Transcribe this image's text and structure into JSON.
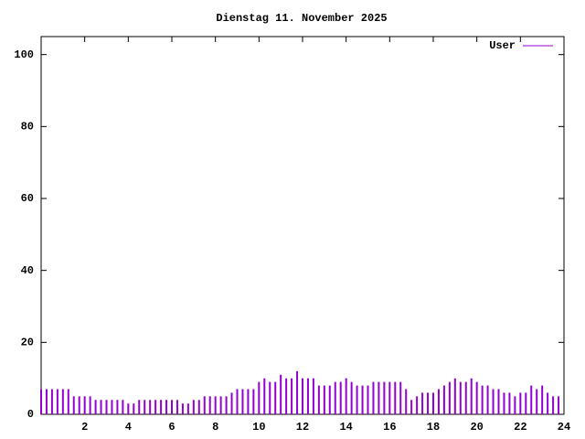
{
  "chart_data": {
    "type": "impulse",
    "title": "Dienstag 11. November 2025",
    "x": [
      0,
      0.25,
      0.5,
      0.75,
      1,
      1.25,
      1.5,
      1.75,
      2,
      2.25,
      2.5,
      2.75,
      3,
      3.25,
      3.5,
      3.75,
      4,
      4.25,
      4.5,
      4.75,
      5,
      5.25,
      5.5,
      5.75,
      6,
      6.25,
      6.5,
      6.75,
      7,
      7.25,
      7.5,
      7.75,
      8,
      8.25,
      8.5,
      8.75,
      9,
      9.25,
      9.5,
      9.75,
      10,
      10.25,
      10.5,
      10.75,
      11,
      11.25,
      11.5,
      11.75,
      12,
      12.25,
      12.5,
      12.75,
      13,
      13.25,
      13.5,
      13.75,
      14,
      14.25,
      14.5,
      14.75,
      15,
      15.25,
      15.5,
      15.75,
      16,
      16.25,
      16.5,
      16.75,
      17,
      17.25,
      17.5,
      17.75,
      18,
      18.25,
      18.5,
      18.75,
      19,
      19.25,
      19.5,
      19.75,
      20,
      20.25,
      20.5,
      20.75,
      21,
      21.25,
      21.5,
      21.75,
      22,
      22.25,
      22.5,
      22.75,
      23,
      23.25,
      23.5,
      23.75
    ],
    "series": [
      {
        "name": "User",
        "color": "#9400d3",
        "values": [
          7,
          7,
          7,
          7,
          7,
          7,
          5,
          5,
          5,
          5,
          4,
          4,
          4,
          4,
          4,
          4,
          3,
          3,
          4,
          4,
          4,
          4,
          4,
          4,
          4,
          4,
          3,
          3,
          4,
          4,
          5,
          5,
          5,
          5,
          5,
          6,
          7,
          7,
          7,
          7,
          9,
          10,
          9,
          9,
          11,
          10,
          10,
          12,
          10,
          10,
          10,
          8,
          8,
          8,
          9,
          9,
          10,
          9,
          8,
          8,
          8,
          9,
          9,
          9,
          9,
          9,
          9,
          7,
          4,
          5,
          6,
          6,
          6,
          7,
          8,
          9,
          10,
          9,
          9,
          10,
          9,
          8,
          8,
          7,
          7,
          6,
          6,
          5,
          6,
          6,
          8,
          7,
          8,
          6,
          5,
          5
        ]
      }
    ],
    "xlim": [
      0,
      24
    ],
    "xticks": [
      2,
      4,
      6,
      8,
      10,
      12,
      14,
      16,
      18,
      20,
      22,
      24
    ],
    "ylim": [
      0,
      105
    ],
    "yticks": [
      0,
      20,
      40,
      60,
      80,
      100
    ]
  }
}
